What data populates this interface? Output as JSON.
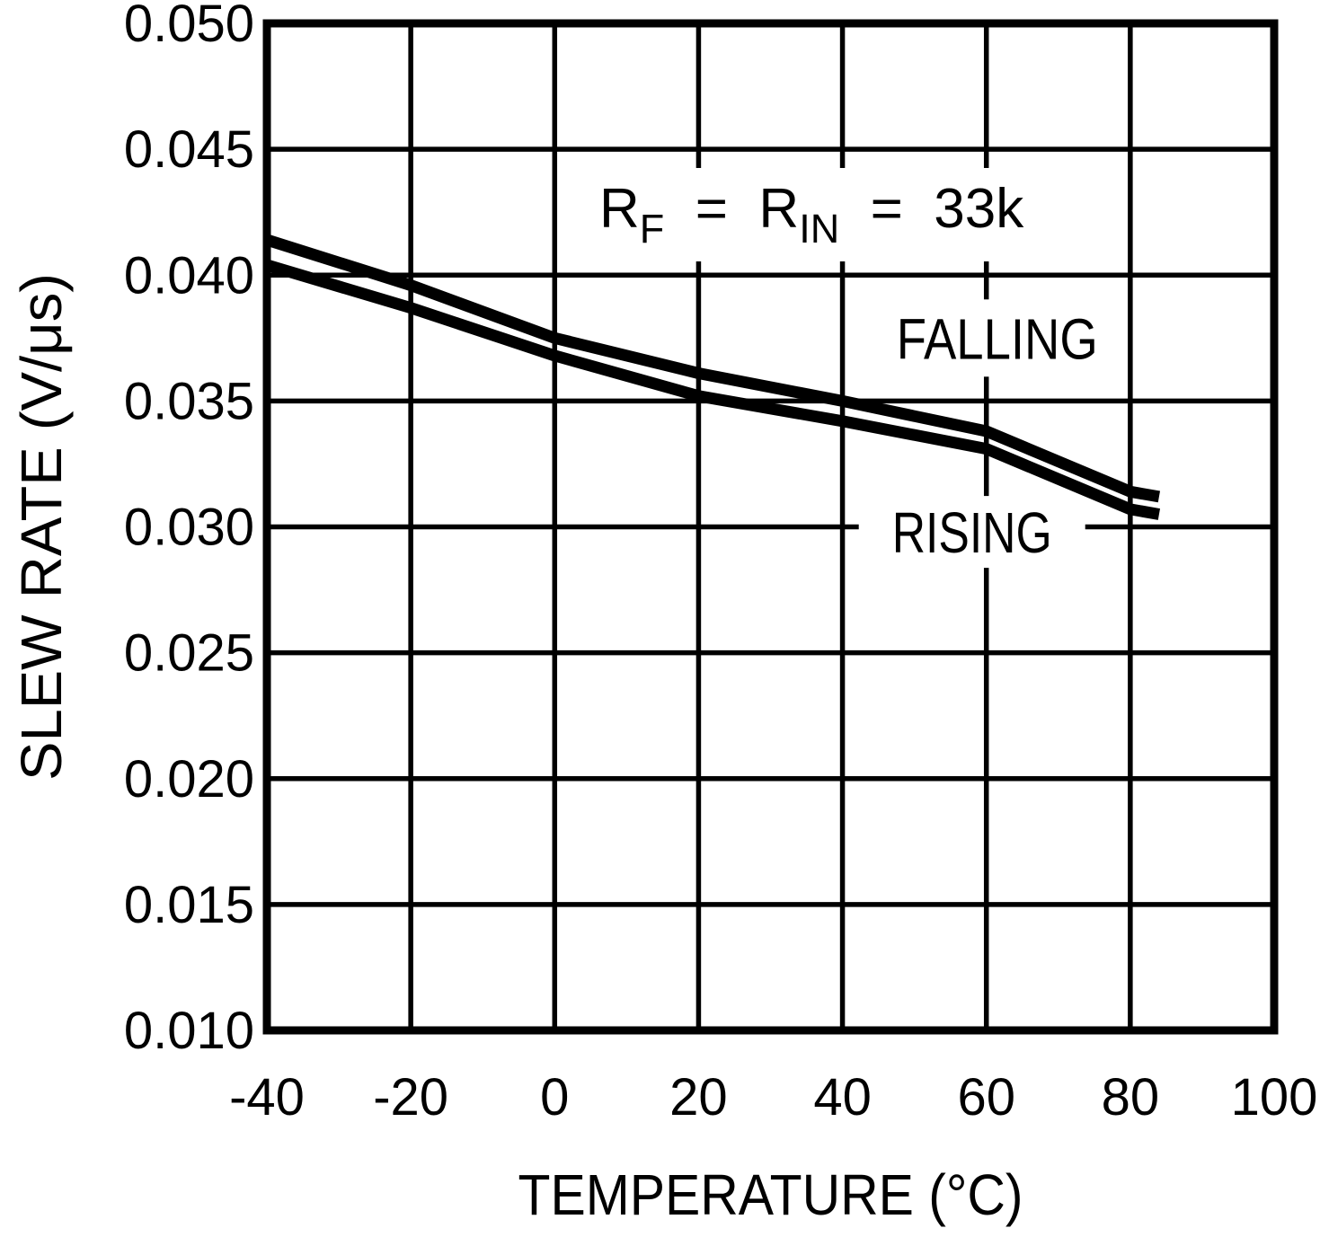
{
  "page": {
    "background": "#ffffff",
    "ink": "#000000"
  },
  "chart_data": {
    "type": "line",
    "title": "",
    "xlabel": "TEMPERATURE (°C)",
    "ylabel": "SLEW RATE (V/μs)",
    "xlim": [
      -40,
      100
    ],
    "ylim": [
      0.01,
      0.05
    ],
    "xticks": [
      "-40",
      "-20",
      "0",
      "20",
      "40",
      "60",
      "80",
      "100"
    ],
    "yticks": [
      "0.010",
      "0.015",
      "0.020",
      "0.025",
      "0.030",
      "0.035",
      "0.040",
      "0.045",
      "0.050"
    ],
    "grid": true,
    "legend_position": "inline-labels",
    "annotation": {
      "parts": [
        {
          "t": "R",
          "s": "base"
        },
        {
          "t": "F",
          "s": "sub"
        },
        {
          "t": "  =  R",
          "s": "base"
        },
        {
          "t": "IN",
          "s": "sub"
        },
        {
          "t": "  =  33k",
          "s": "base"
        }
      ],
      "x": 35.7,
      "y": 0.0424
    },
    "series": [
      {
        "name": "FALLING",
        "x": [
          -40,
          -20,
          0,
          20,
          40,
          60,
          80,
          84
        ],
        "values": [
          0.0414,
          0.0396,
          0.0375,
          0.0361,
          0.035,
          0.0338,
          0.0314,
          0.0312
        ],
        "label_x": 61.5,
        "label_y": 0.0375
      },
      {
        "name": "RISING",
        "x": [
          -40,
          -20,
          0,
          20,
          40,
          60,
          80,
          84
        ],
        "values": [
          0.0404,
          0.0387,
          0.0368,
          0.0352,
          0.0342,
          0.0331,
          0.0307,
          0.0305
        ],
        "label_x": 58.0,
        "label_y": 0.0298
      }
    ]
  }
}
